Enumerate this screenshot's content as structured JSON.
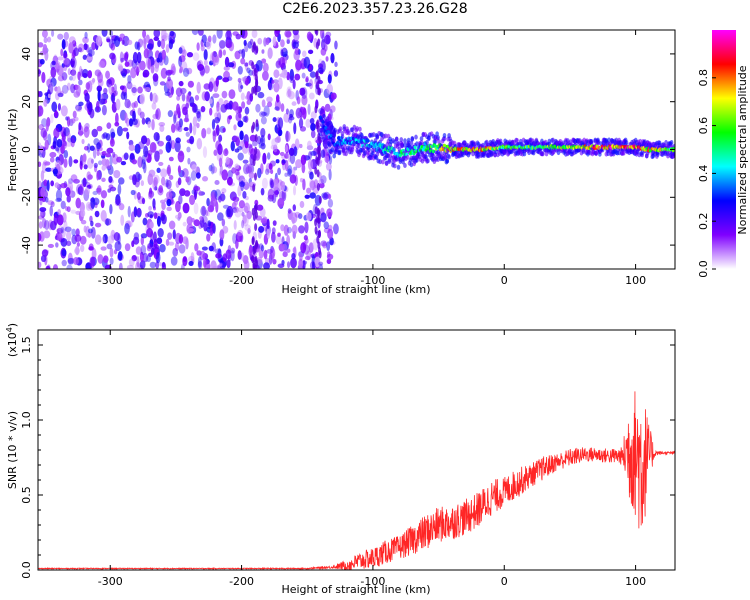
{
  "title": "C2E6.2023.357.23.26.G28",
  "chart_data": [
    {
      "type": "heatmap",
      "xlabel": "Height of straight line (km)",
      "ylabel": "Frequency (Hz)",
      "xlim": [
        -355,
        130
      ],
      "ylim": [
        -50,
        50
      ],
      "x_ticks": [
        -300,
        -200,
        -100,
        0,
        100
      ],
      "y_ticks": [
        -40,
        -20,
        0,
        20,
        40
      ],
      "x_tick_labels": [
        "-300",
        "-200",
        "-100",
        "0",
        "100"
      ],
      "y_tick_labels": [
        "-40",
        "-20",
        "0",
        "20",
        "40"
      ],
      "colorbar": {
        "label": "Normalized spectral amplitude",
        "range": [
          0.0,
          1.0
        ],
        "ticks": [
          0.0,
          0.2,
          0.4,
          0.6,
          0.8
        ],
        "tick_labels": [
          "0.0",
          "0.2",
          "0.4",
          "0.6",
          "0.8"
        ],
        "colormap": [
          "#ffffff",
          "#7f00ff",
          "#0000ff",
          "#00ffff",
          "#00ff00",
          "#ffff00",
          "#ff0000",
          "#ff00ff"
        ]
      },
      "noise_region": {
        "x_range": [
          -355,
          -128
        ],
        "f_range": [
          -50,
          50
        ],
        "amplitude": 0.15
      },
      "signal_track": [
        {
          "x": -140,
          "f": 12,
          "amp": 0.3
        },
        {
          "x": -130,
          "f": 3,
          "amp": 0.35
        },
        {
          "x": -120,
          "f": 4,
          "amp": 0.4
        },
        {
          "x": -100,
          "f": 2,
          "amp": 0.45
        },
        {
          "x": -80,
          "f": -2,
          "amp": 0.5
        },
        {
          "x": -60,
          "f": 1,
          "amp": 0.55
        },
        {
          "x": -40,
          "f": 0,
          "amp": 0.8
        },
        {
          "x": -20,
          "f": 0,
          "amp": 0.85
        },
        {
          "x": 0,
          "f": 1,
          "amp": 0.6
        },
        {
          "x": 40,
          "f": 1,
          "amp": 0.65
        },
        {
          "x": 80,
          "f": 1,
          "amp": 0.9
        },
        {
          "x": 100,
          "f": 1,
          "amp": 0.85
        },
        {
          "x": 110,
          "f": 0,
          "amp": 0.8
        },
        {
          "x": 130,
          "f": 0,
          "amp": 0.6
        }
      ]
    },
    {
      "type": "line",
      "xlabel": "Height of straight line (km)",
      "ylabel": "SNR (10 * v/v)",
      "y_multiplier": "(x10",
      "y_multiplier_exp": "4",
      "y_multiplier_close": ")",
      "xlim": [
        -355,
        130
      ],
      "ylim": [
        0,
        1.6
      ],
      "x_ticks": [
        -300,
        -200,
        -100,
        0,
        100
      ],
      "y_ticks": [
        0.0,
        0.5,
        1.0,
        1.5
      ],
      "x_tick_labels": [
        "-300",
        "-200",
        "-100",
        "0",
        "100"
      ],
      "y_tick_labels": [
        "0.0",
        "0.5",
        "1.0",
        "1.5"
      ],
      "color": "#ff0000",
      "series": [
        {
          "x": [
            -355,
            -300,
            -250,
            -200,
            -150,
            -130,
            -120,
            -110,
            -100,
            -90,
            -80,
            -70,
            -60,
            -50,
            -40,
            -30,
            -20,
            -10,
            0,
            10,
            20,
            30,
            40,
            50,
            60,
            70,
            80,
            90,
            95,
            100,
            105,
            110,
            115,
            120,
            130
          ],
          "y": [
            0.01,
            0.01,
            0.01,
            0.01,
            0.01,
            0.02,
            0.03,
            0.06,
            0.08,
            0.12,
            0.15,
            0.2,
            0.25,
            0.3,
            0.32,
            0.35,
            0.4,
            0.48,
            0.52,
            0.58,
            0.63,
            0.68,
            0.72,
            0.75,
            0.77,
            0.77,
            0.76,
            0.76,
            0.8,
            0.78,
            0.7,
            0.78,
            0.78,
            0.78,
            0.78
          ],
          "spread": [
            0.003,
            0.003,
            0.003,
            0.003,
            0.004,
            0.01,
            0.04,
            0.06,
            0.07,
            0.08,
            0.08,
            0.1,
            0.12,
            0.12,
            0.12,
            0.12,
            0.12,
            0.12,
            0.1,
            0.1,
            0.08,
            0.08,
            0.06,
            0.06,
            0.05,
            0.05,
            0.05,
            0.06,
            0.35,
            0.45,
            0.55,
            0.2,
            0.02,
            0.01,
            0.01
          ]
        }
      ]
    }
  ]
}
